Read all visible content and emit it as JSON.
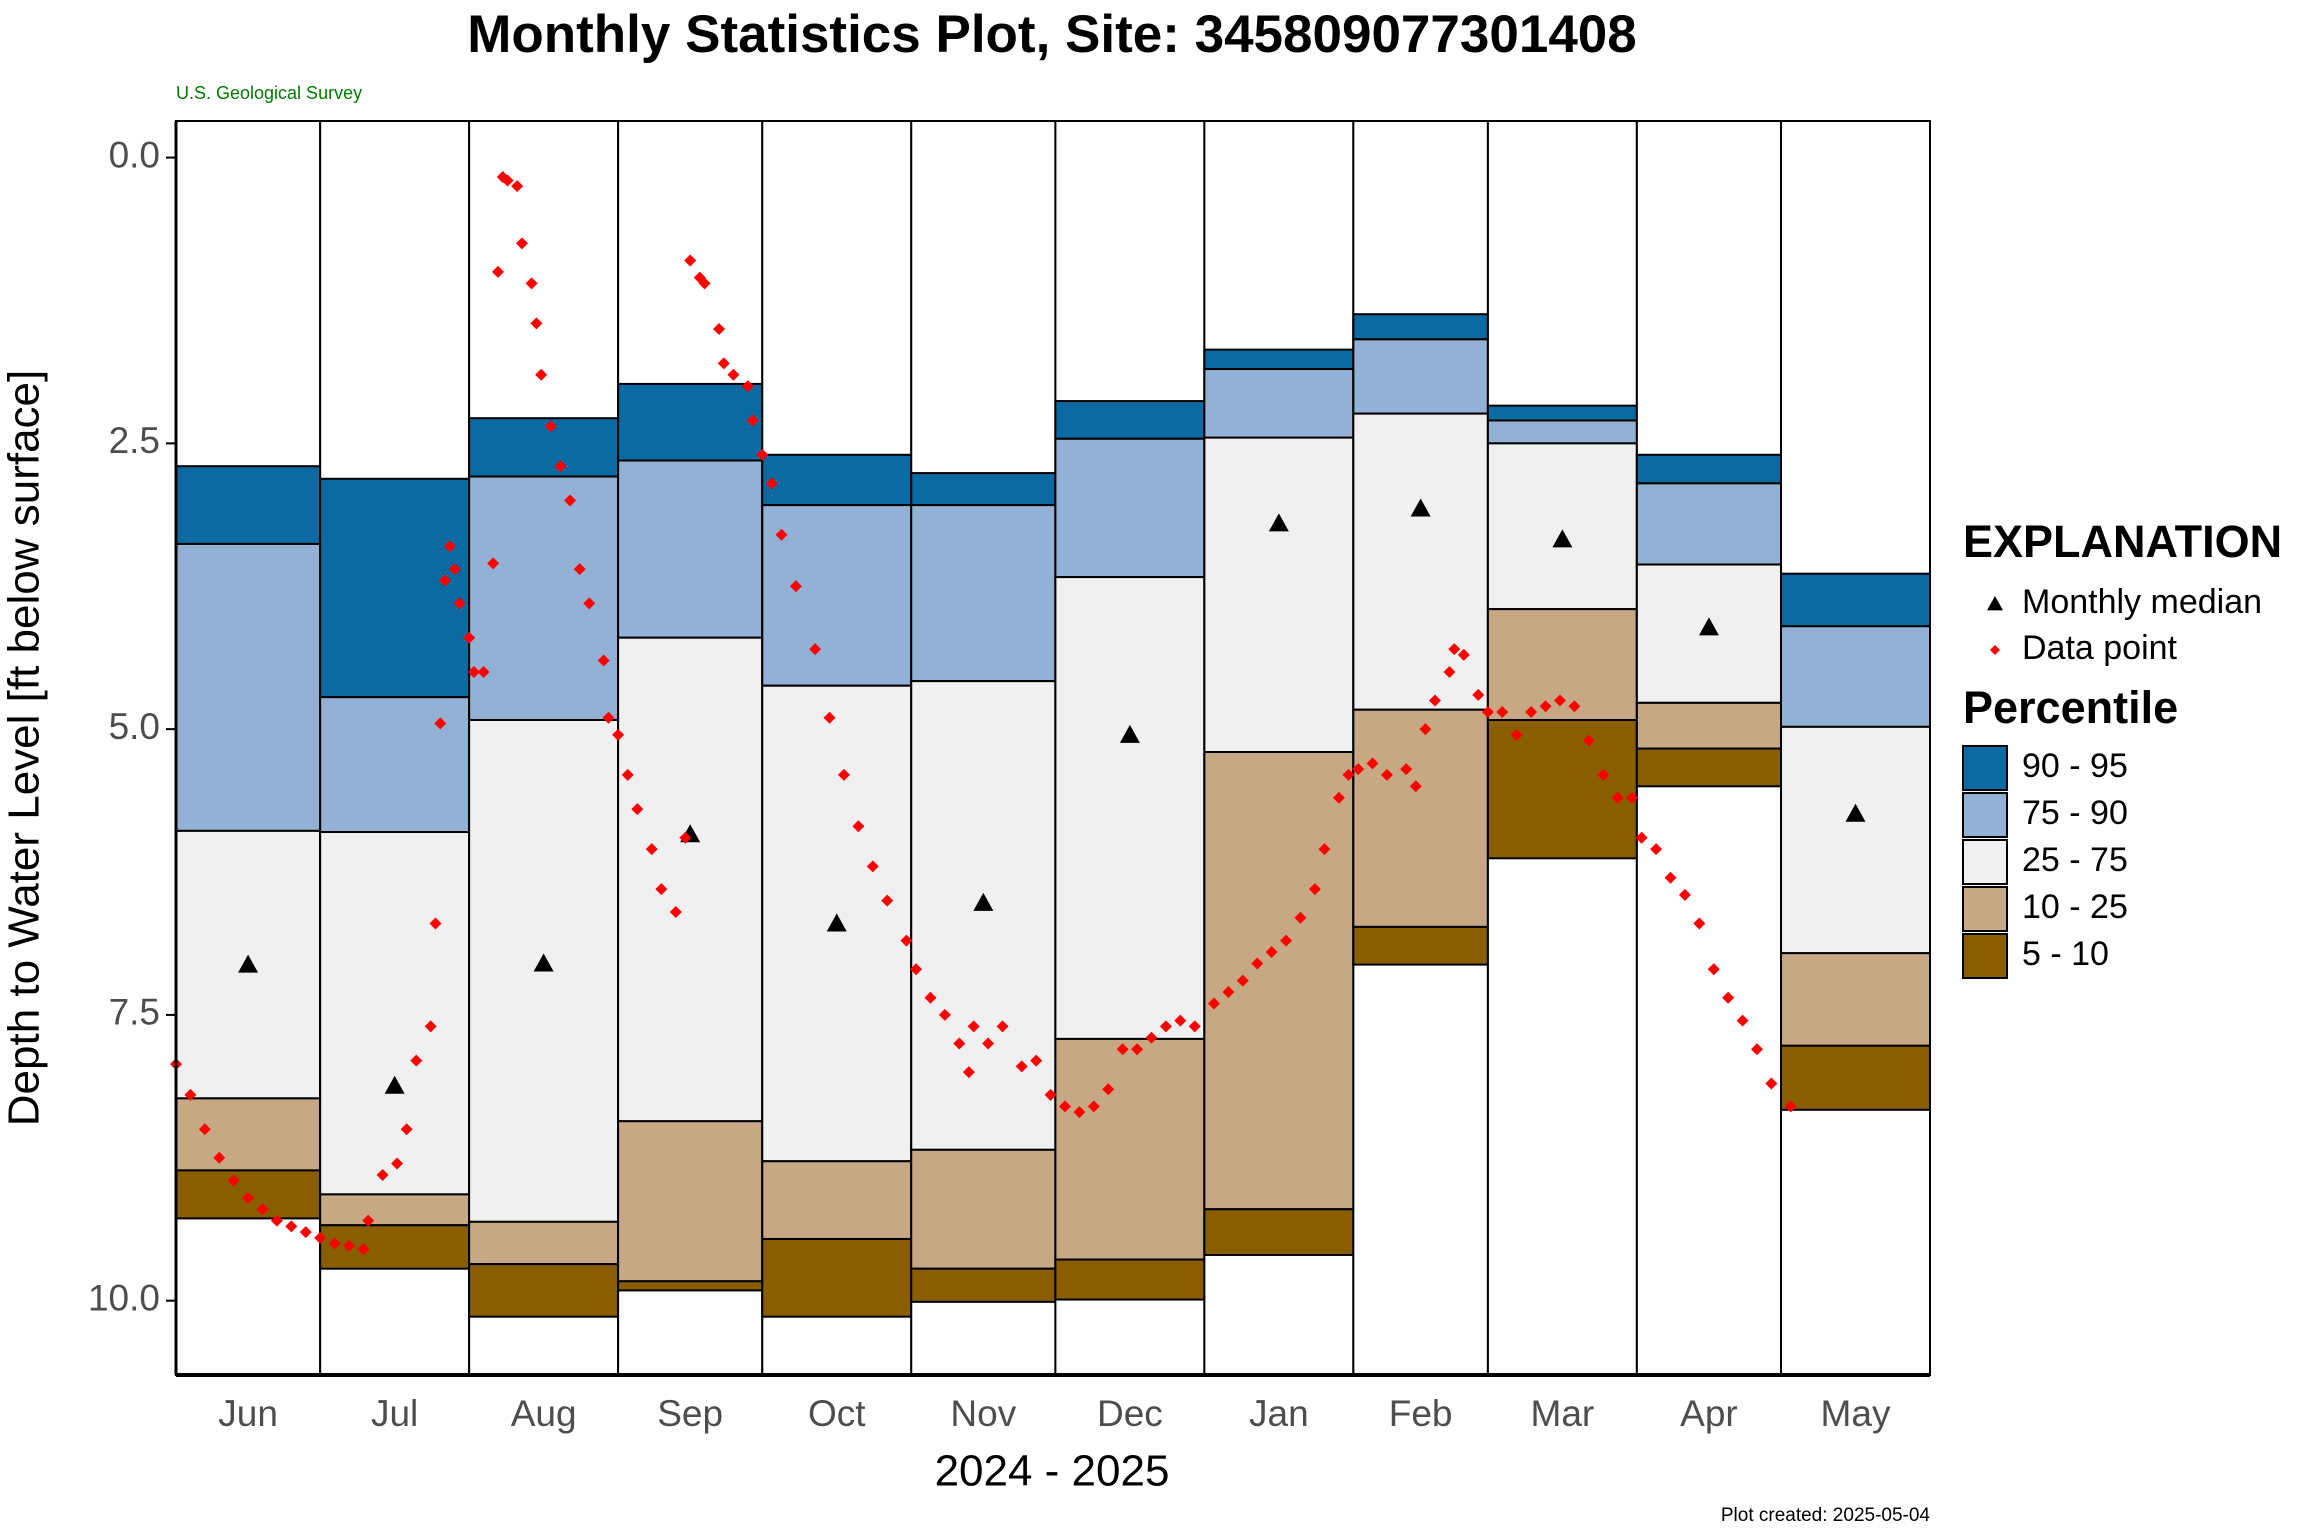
{
  "chart_data": {
    "type": "monthly-stats",
    "title": "Monthly Statistics Plot, Site: 345809077301408",
    "subtitle": "U.S. Geological Survey",
    "ylabel": "Depth to Water Level [ft below surface]",
    "xlabel": "2024 - 2025",
    "footer": "Plot created: 2025-05-04",
    "categories": [
      "Jun",
      "Jul",
      "Aug",
      "Sep",
      "Oct",
      "Nov",
      "Dec",
      "Jan",
      "Feb",
      "Mar",
      "Apr",
      "May"
    ],
    "edges": [
      0,
      30,
      61,
      92,
      122,
      153,
      183,
      214,
      245,
      273,
      304,
      334,
      365
    ],
    "xlim": [
      0,
      365
    ],
    "ylim": [
      -0.32,
      10.65
    ],
    "y_inverted": true,
    "yticks": [
      {
        "value": 0,
        "label": "0.0"
      },
      2.5,
      {
        "value": 5,
        "label": "5.0"
      },
      7.5,
      {
        "value": 10,
        "label": "10.0"
      }
    ],
    "legend_title": "EXPLANATION",
    "percentile_title": "Percentile",
    "levels": [
      [
        2.7,
        2.81,
        2.28,
        1.98,
        2.6,
        2.76,
        2.13,
        1.68,
        1.37,
        2.17,
        2.6,
        3.64
      ],
      [
        3.38,
        4.72,
        2.79,
        2.65,
        3.04,
        3.04,
        2.46,
        1.85,
        1.59,
        2.3,
        2.85,
        4.1
      ],
      [
        5.89,
        5.9,
        4.92,
        4.2,
        4.62,
        4.58,
        3.67,
        2.45,
        2.24,
        2.5,
        3.56,
        4.98
      ],
      [
        8.23,
        9.07,
        9.31,
        8.43,
        8.78,
        8.68,
        7.71,
        5.2,
        4.83,
        3.95,
        4.77,
        6.96
      ],
      [
        8.86,
        9.34,
        9.68,
        9.83,
        9.46,
        9.72,
        9.64,
        9.2,
        6.73,
        4.92,
        5.17,
        7.77
      ],
      [
        9.28,
        9.72,
        10.14,
        9.91,
        10.14,
        10.01,
        9.99,
        9.6,
        7.06,
        6.13,
        5.5,
        8.33
      ]
    ],
    "bands": [
      {
        "name": "90 - 95",
        "color": "#0a6aa1"
      },
      {
        "name": "75 - 90",
        "color": "#92b1d5"
      },
      {
        "name": "25 - 75",
        "color": "#f0f0f0"
      },
      {
        "name": "10 - 25",
        "color": "#c6a984"
      },
      {
        "name": "5 - 10",
        "color": "#885e00"
      }
    ],
    "median": {
      "name": "Monthly median",
      "color": "#000000",
      "values": [
        7.06,
        8.12,
        7.05,
        5.92,
        6.7,
        6.52,
        5.05,
        3.2,
        3.07,
        3.34,
        4.11,
        5.74
      ]
    },
    "points": {
      "name": "Data point",
      "color": "#ff0000",
      "x": [
        0,
        3,
        6,
        9,
        12,
        15,
        18,
        21,
        24,
        27,
        30,
        33,
        36,
        39,
        40,
        43,
        46,
        48,
        50,
        53,
        54,
        55,
        56,
        57,
        58,
        59,
        61,
        62,
        64,
        66,
        67,
        68,
        69,
        71,
        72,
        74,
        75,
        76,
        78,
        80,
        82,
        84,
        86,
        89,
        90,
        92,
        94,
        96,
        99,
        101,
        104,
        106,
        107,
        109,
        110,
        113,
        114,
        116,
        119,
        120,
        122,
        124,
        126,
        129,
        133,
        136,
        139,
        142,
        145,
        148,
        152,
        154,
        157,
        160,
        163,
        165,
        166,
        169,
        172,
        176,
        179,
        182,
        185,
        188,
        191,
        194,
        197,
        200,
        203,
        206,
        209,
        212,
        216,
        219,
        222,
        225,
        228,
        231,
        234,
        237,
        239,
        242,
        244,
        246,
        249,
        252,
        256,
        258,
        260,
        262,
        265,
        266,
        268,
        271,
        273,
        276,
        279,
        282,
        285,
        288,
        291,
        294,
        297,
        300,
        303,
        305,
        308,
        311,
        314,
        317,
        320,
        323,
        326,
        329,
        332,
        336
      ],
      "values": [
        7.93,
        8.2,
        8.5,
        8.75,
        8.95,
        9.1,
        9.2,
        9.3,
        9.35,
        9.4,
        9.45,
        9.5,
        9.52,
        9.55,
        9.3,
        8.9,
        8.8,
        8.5,
        7.9,
        7.6,
        6.7,
        4.95,
        3.7,
        3.4,
        3.6,
        3.9,
        4.2,
        4.5,
        4.5,
        3.55,
        1.0,
        0.17,
        0.2,
        0.25,
        0.75,
        1.1,
        1.45,
        1.9,
        2.35,
        2.7,
        3.0,
        3.6,
        3.9,
        4.4,
        4.9,
        5.05,
        5.4,
        5.7,
        6.05,
        6.4,
        6.6,
        5.95,
        0.9,
        1.05,
        1.1,
        1.5,
        1.8,
        1.9,
        2.0,
        2.3,
        2.6,
        2.85,
        3.3,
        3.75,
        4.3,
        4.9,
        5.4,
        5.85,
        6.2,
        6.5,
        6.85,
        7.1,
        7.35,
        7.5,
        7.75,
        8.0,
        7.6,
        7.75,
        7.6,
        7.95,
        7.9,
        8.2,
        8.3,
        8.35,
        8.3,
        8.15,
        7.8,
        7.8,
        7.7,
        7.6,
        7.55,
        7.6,
        7.4,
        7.3,
        7.2,
        7.05,
        6.95,
        6.85,
        6.65,
        6.4,
        6.05,
        5.6,
        5.4,
        5.35,
        5.3,
        5.4,
        5.35,
        5.5,
        5.0,
        4.75,
        4.5,
        4.3,
        4.35,
        4.7,
        4.85,
        4.85,
        5.05,
        4.85,
        4.8,
        4.75,
        4.8,
        5.1,
        5.4,
        5.6,
        5.6,
        5.95,
        6.05,
        6.3,
        6.45,
        6.7,
        7.1,
        7.35,
        7.55,
        7.8,
        8.1,
        8.3
      ]
    }
  }
}
